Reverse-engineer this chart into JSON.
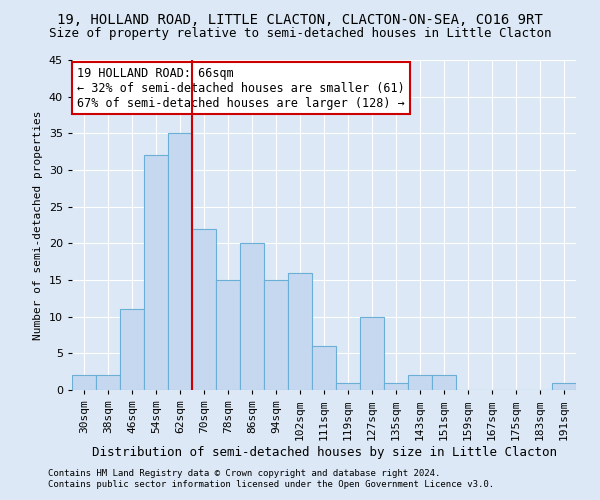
{
  "title": "19, HOLLAND ROAD, LITTLE CLACTON, CLACTON-ON-SEA, CO16 9RT",
  "subtitle": "Size of property relative to semi-detached houses in Little Clacton",
  "xlabel": "Distribution of semi-detached houses by size in Little Clacton",
  "ylabel": "Number of semi-detached properties",
  "footer1": "Contains HM Land Registry data © Crown copyright and database right 2024.",
  "footer2": "Contains public sector information licensed under the Open Government Licence v3.0.",
  "categories": [
    "30sqm",
    "38sqm",
    "46sqm",
    "54sqm",
    "62sqm",
    "70sqm",
    "78sqm",
    "86sqm",
    "94sqm",
    "102sqm",
    "111sqm",
    "119sqm",
    "127sqm",
    "135sqm",
    "143sqm",
    "151sqm",
    "159sqm",
    "167sqm",
    "175sqm",
    "183sqm",
    "191sqm"
  ],
  "values": [
    2,
    2,
    11,
    32,
    35,
    22,
    15,
    20,
    15,
    16,
    6,
    1,
    10,
    1,
    2,
    2,
    0,
    0,
    0,
    0,
    1
  ],
  "bar_color": "#c5d8f0",
  "bar_edge_color": "#6baed6",
  "property_line_x": 4.5,
  "property_sqm": 66,
  "pct_smaller": 32,
  "count_smaller": 61,
  "pct_larger": 67,
  "count_larger": 128,
  "ylim": [
    0,
    45
  ],
  "yticks": [
    0,
    5,
    10,
    15,
    20,
    25,
    30,
    35,
    40,
    45
  ],
  "bg_color": "#dce8f5",
  "plot_bg_color": "#dce8f5",
  "grid_color": "#ffffff",
  "annotation_box_color": "#ffffff",
  "annotation_box_edge": "#cc0000",
  "property_line_color": "#cc0000",
  "title_fontsize": 10,
  "subtitle_fontsize": 9,
  "xlabel_fontsize": 9,
  "ylabel_fontsize": 8,
  "tick_fontsize": 8,
  "annot_fontsize": 8.5,
  "footer_fontsize": 6.5
}
